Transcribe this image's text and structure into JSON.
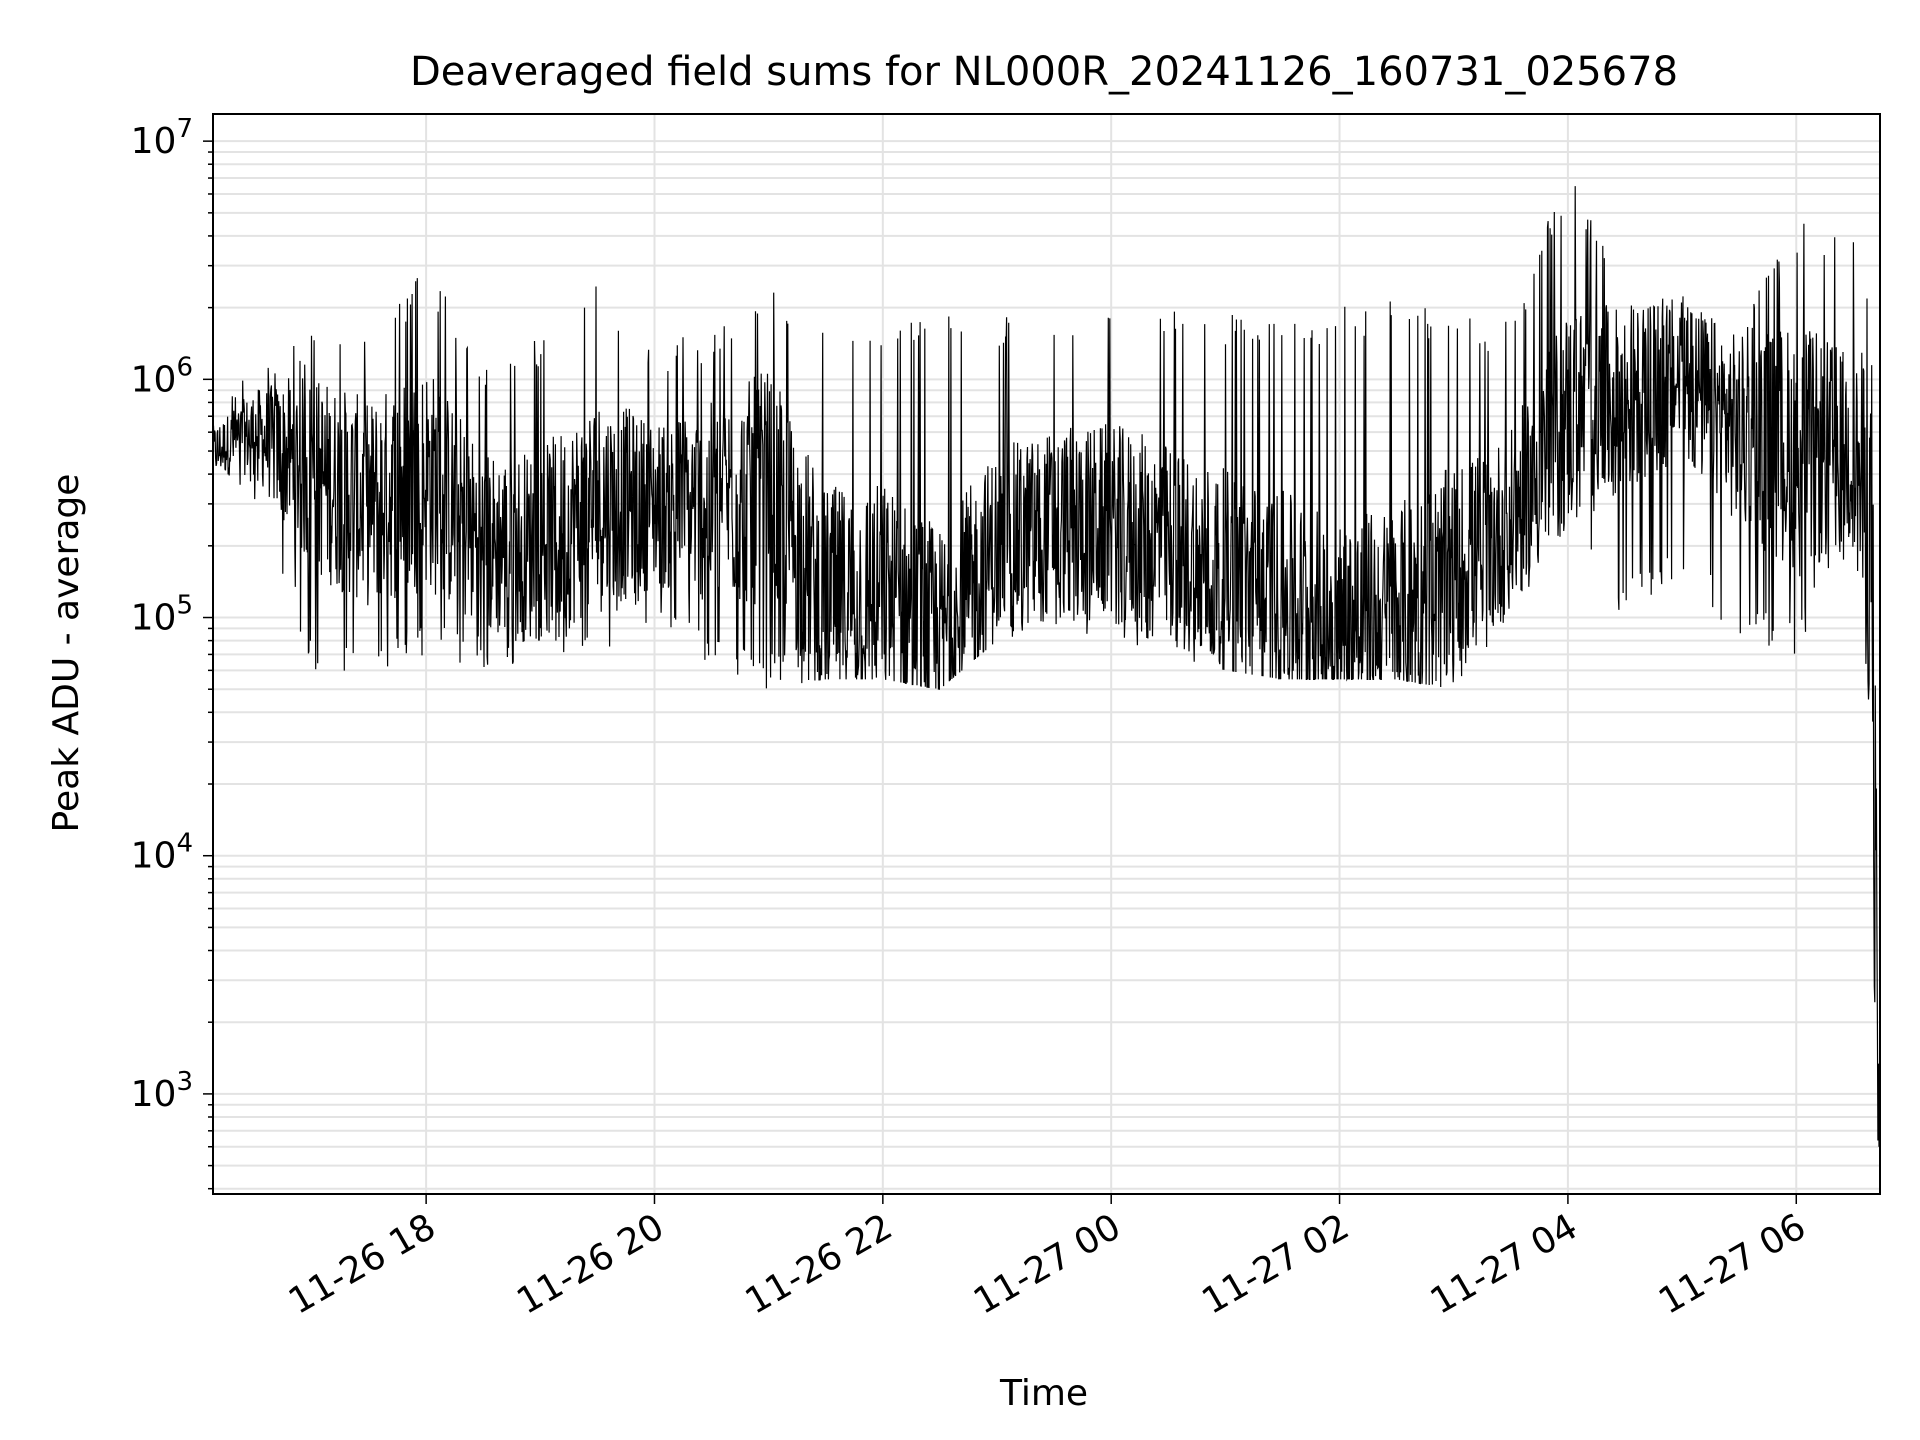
{
  "chart_data": {
    "type": "line",
    "title": "Deaveraged field sums for NL000R_20241126_160731_025678",
    "xlabel": "Time",
    "ylabel": "Peak ADU - average",
    "yscale": "log",
    "ylim": [
      380,
      13000000
    ],
    "xlim": [
      "2024-11-26 16:08",
      "2024-11-27 06:44"
    ],
    "grid": true,
    "grid_minor": true,
    "line_color": "#000000",
    "x_ticks": [
      {
        "value": "2024-11-26 18:00",
        "label": "11-26 18"
      },
      {
        "value": "2024-11-26 20:00",
        "label": "11-26 20"
      },
      {
        "value": "2024-11-26 22:00",
        "label": "11-26 22"
      },
      {
        "value": "2024-11-27 00:00",
        "label": "11-27 00"
      },
      {
        "value": "2024-11-27 02:00",
        "label": "11-27 02"
      },
      {
        "value": "2024-11-27 04:00",
        "label": "11-27 04"
      },
      {
        "value": "2024-11-27 06:00",
        "label": "11-27 06"
      }
    ],
    "y_ticks": [
      {
        "value": 1000,
        "base": "10",
        "exp": "3"
      },
      {
        "value": 10000,
        "base": "10",
        "exp": "4"
      },
      {
        "value": 100000,
        "base": "10",
        "exp": "5"
      },
      {
        "value": 1000000,
        "base": "10",
        "exp": "6"
      },
      {
        "value": 10000000,
        "base": "10",
        "exp": "7"
      }
    ],
    "series": [
      {
        "values_note_removed": true,
        "x": [
          "2024-11-26 16:08",
          "2024-11-26 16:30",
          "2024-11-26 17:00",
          "2024-11-26 17:30",
          "2024-11-26 18:00",
          "2024-11-26 18:30",
          "2024-11-26 19:00",
          "2024-11-26 19:30",
          "2024-11-26 20:00",
          "2024-11-26 20:30",
          "2024-11-26 21:00",
          "2024-11-26 21:30",
          "2024-11-26 22:00",
          "2024-11-26 22:30",
          "2024-11-26 23:00",
          "2024-11-26 23:30",
          "2024-11-27 00:00",
          "2024-11-27 00:30",
          "2024-11-27 01:00",
          "2024-11-27 01:30",
          "2024-11-27 02:00",
          "2024-11-27 02:30",
          "2024-11-27 03:00",
          "2024-11-27 03:30",
          "2024-11-27 04:00",
          "2024-11-27 04:30",
          "2024-11-27 05:00",
          "2024-11-27 05:30",
          "2024-11-27 06:00",
          "2024-11-27 06:30",
          "2024-11-27 06:40",
          "2024-11-27 06:43"
        ],
        "values": [
          500000,
          600000,
          400000,
          300000,
          400000,
          200000,
          200000,
          300000,
          300000,
          300000,
          350000,
          120000,
          130000,
          80000,
          200000,
          250000,
          250000,
          200000,
          150000,
          120000,
          90000,
          100000,
          150000,
          250000,
          700000,
          800000,
          1000000,
          600000,
          500000,
          500000,
          200000,
          600
        ],
        "upper_envelope": [
          900000,
          1200000,
          1600000,
          1600000,
          3000000,
          1300000,
          1500000,
          2500000,
          1500000,
          1600000,
          2400000,
          2000000,
          1900000,
          1900000,
          1900000,
          1900000,
          2000000,
          2000000,
          1900000,
          1800000,
          2000000,
          2200000,
          1800000,
          1900000,
          8000000,
          2200000,
          2300000,
          1800000,
          4700000,
          4600000,
          2500000,
          200000
        ],
        "lower_envelope": [
          400000,
          300000,
          60000,
          55000,
          70000,
          60000,
          65000,
          70000,
          100000,
          60000,
          50000,
          55000,
          55000,
          50000,
          80000,
          90000,
          80000,
          70000,
          60000,
          55000,
          55000,
          55000,
          50000,
          100000,
          200000,
          100000,
          150000,
          80000,
          70000,
          200000,
          4000,
          600
        ]
      }
    ]
  }
}
